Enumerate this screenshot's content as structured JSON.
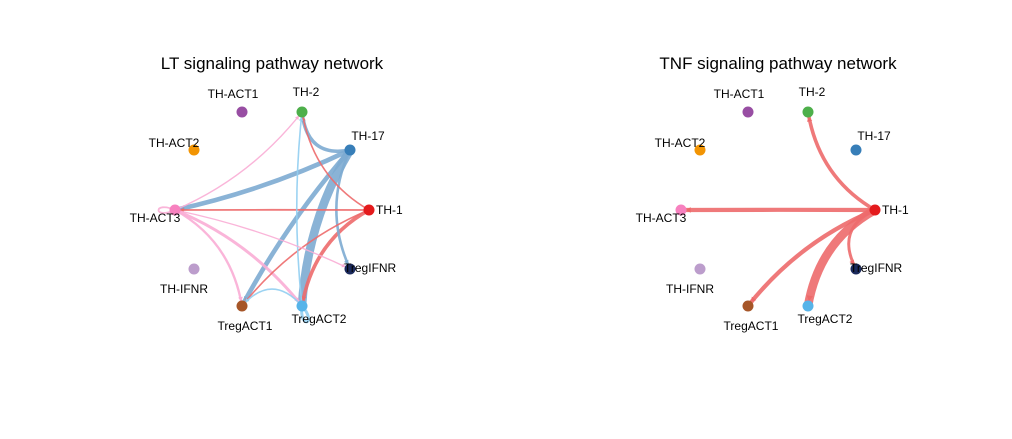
{
  "nodes": [
    {
      "id": "TH-ACT1",
      "label": "TH-ACT1",
      "color": "#984EA3"
    },
    {
      "id": "TH-2",
      "label": "TH-2",
      "color": "#4DAF4A"
    },
    {
      "id": "TH-ACT2",
      "label": "TH-ACT2",
      "color": "#F29403"
    },
    {
      "id": "TH-17",
      "label": "TH-17",
      "color": "#377EB8"
    },
    {
      "id": "TH-ACT3",
      "label": "TH-ACT3",
      "color": "#F781BF"
    },
    {
      "id": "TH-1",
      "label": "TH-1",
      "color": "#E41A1C"
    },
    {
      "id": "TregIFNR",
      "label": "TregIFNR",
      "color": "#1B2A5C"
    },
    {
      "id": "TH-IFNR",
      "label": "TH-IFNR",
      "color": "#BC9DCC"
    },
    {
      "id": "TregACT1",
      "label": "TregACT1",
      "color": "#A65628"
    },
    {
      "id": "TregACT2",
      "label": "TregACT2",
      "color": "#56B4E9"
    }
  ],
  "panels": [
    {
      "title": "LT signaling pathway network",
      "edges": [
        {
          "source": "TH-17",
          "target": "TregACT2",
          "weight": 4
        },
        {
          "source": "TH-17",
          "target": "TregACT1",
          "weight": 2
        },
        {
          "source": "TH-17",
          "target": "TH-ACT3",
          "weight": 2
        },
        {
          "source": "TH-17",
          "target": "TH-2",
          "weight": 1.5
        },
        {
          "source": "TH-17",
          "target": "TregIFNR",
          "weight": 1
        },
        {
          "source": "TH-1",
          "target": "TregACT2",
          "weight": 1.5
        },
        {
          "source": "TH-1",
          "target": "TH-ACT3",
          "weight": 0.6
        },
        {
          "source": "TH-1",
          "target": "TH-2",
          "weight": 0.5
        },
        {
          "source": "TH-1",
          "target": "TregACT1",
          "weight": 0.5
        },
        {
          "source": "TH-ACT3",
          "target": "TregACT2",
          "weight": 1.2
        },
        {
          "source": "TH-ACT3",
          "target": "TregACT1",
          "weight": 0.9
        },
        {
          "source": "TH-ACT3",
          "target": "TH-2",
          "weight": 0.4
        },
        {
          "source": "TH-ACT3",
          "target": "TregIFNR",
          "weight": 0.4
        },
        {
          "source": "TregACT2",
          "target": "TH-2",
          "weight": 0.5
        },
        {
          "source": "TregACT2",
          "target": "TregACT1",
          "weight": 0.5
        },
        {
          "source": "TregACT2",
          "target": "TregACT2",
          "weight": 1.2
        },
        {
          "source": "TH-ACT3",
          "target": "TH-ACT3",
          "weight": 0.6
        }
      ]
    },
    {
      "title": "TNF signaling pathway network",
      "edges": [
        {
          "source": "TH-1",
          "target": "TregACT2",
          "weight": 4
        },
        {
          "source": "TH-1",
          "target": "TregACT1",
          "weight": 1.8
        },
        {
          "source": "TH-1",
          "target": "TH-ACT3",
          "weight": 1.8
        },
        {
          "source": "TH-1",
          "target": "TH-2",
          "weight": 1.5
        },
        {
          "source": "TH-1",
          "target": "TregIFNR",
          "weight": 1.2
        }
      ]
    }
  ]
}
